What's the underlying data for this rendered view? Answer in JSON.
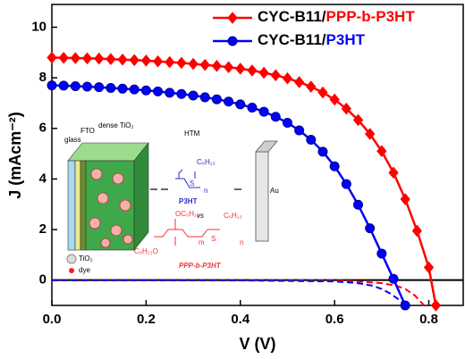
{
  "chart_data": {
    "type": "line",
    "x_label": "V (V)",
    "y_label": "J (mAcm⁻²)",
    "xlim": [
      0,
      0.873
    ],
    "ylim": [
      -1,
      10.9
    ],
    "xticks": [
      {
        "value": 0,
        "label": "0.0"
      },
      {
        "value": 0.2,
        "label": "0.2"
      },
      {
        "value": 0.4,
        "label": "0.4"
      },
      {
        "value": 0.6,
        "label": "0.6"
      },
      {
        "value": 0.8,
        "label": "0.8"
      }
    ],
    "yticks": [
      0,
      2,
      4,
      6,
      8,
      10
    ],
    "legend": "top-right",
    "series": [
      {
        "name": "CYC-B11/PPP-b-P3HT",
        "color": "#ff0000",
        "marker": "diamond",
        "x": [
          0,
          0.025,
          0.05,
          0.075,
          0.1,
          0.125,
          0.15,
          0.175,
          0.2,
          0.225,
          0.25,
          0.275,
          0.3,
          0.325,
          0.35,
          0.375,
          0.4,
          0.425,
          0.45,
          0.475,
          0.5,
          0.525,
          0.55,
          0.575,
          0.6,
          0.625,
          0.65,
          0.675,
          0.7,
          0.725,
          0.75,
          0.775,
          0.8,
          0.815
        ],
        "values": [
          8.8,
          8.79,
          8.78,
          8.77,
          8.76,
          8.74,
          8.72,
          8.7,
          8.68,
          8.65,
          8.62,
          8.59,
          8.55,
          8.51,
          8.47,
          8.42,
          8.36,
          8.29,
          8.2,
          8.1,
          7.98,
          7.83,
          7.65,
          7.42,
          7.14,
          6.78,
          6.33,
          5.78,
          5.1,
          4.25,
          3.2,
          1.95,
          0.5,
          -1.0
        ]
      },
      {
        "name": "CYC-B11/P3HT",
        "color": "#0000ff",
        "marker": "circle",
        "x": [
          0,
          0.025,
          0.05,
          0.075,
          0.1,
          0.125,
          0.15,
          0.175,
          0.2,
          0.225,
          0.25,
          0.275,
          0.3,
          0.325,
          0.35,
          0.375,
          0.4,
          0.425,
          0.45,
          0.475,
          0.5,
          0.525,
          0.55,
          0.575,
          0.6,
          0.625,
          0.65,
          0.675,
          0.7,
          0.725,
          0.75
        ],
        "values": [
          7.7,
          7.69,
          7.67,
          7.65,
          7.63,
          7.6,
          7.57,
          7.54,
          7.5,
          7.46,
          7.41,
          7.36,
          7.3,
          7.23,
          7.15,
          7.06,
          6.95,
          6.82,
          6.66,
          6.46,
          6.22,
          5.92,
          5.55,
          5.08,
          4.5,
          3.8,
          2.98,
          2.05,
          1.05,
          0.05,
          -1.0
        ]
      }
    ],
    "dark_series": [
      {
        "color": "#ff0000",
        "x": [
          0,
          0.2,
          0.4,
          0.6,
          0.65,
          0.7,
          0.73,
          0.75,
          0.77,
          0.79
        ],
        "values": [
          0,
          0,
          0,
          -0.02,
          -0.05,
          -0.12,
          -0.22,
          -0.35,
          -0.6,
          -1.0
        ]
      },
      {
        "color": "#0000ff",
        "x": [
          0,
          0.2,
          0.4,
          0.6,
          0.65,
          0.68,
          0.7,
          0.72,
          0.735,
          0.75
        ],
        "values": [
          0,
          0,
          -0.01,
          -0.05,
          -0.12,
          -0.22,
          -0.35,
          -0.55,
          -0.75,
          -1.0
        ]
      }
    ]
  },
  "inset": {
    "glass": "glass",
    "fto": "FTO",
    "dense": "dense TiO₂",
    "htm": "HTM",
    "hexyl1": "C₆H₁₃",
    "s1": "S",
    "n1": "n",
    "p3ht": "P3HT",
    "vs": "vs",
    "au": "Au",
    "hexyl2": "OC₆H₁₃",
    "hexyl3": "C₆H₁₃",
    "hexyl4": "C₆H₁₃O",
    "s2": "S",
    "m": "m",
    "n2": "n",
    "ppp": "PPP-b-P3HT",
    "tio2": "TiO₂",
    "dye": "dye"
  }
}
